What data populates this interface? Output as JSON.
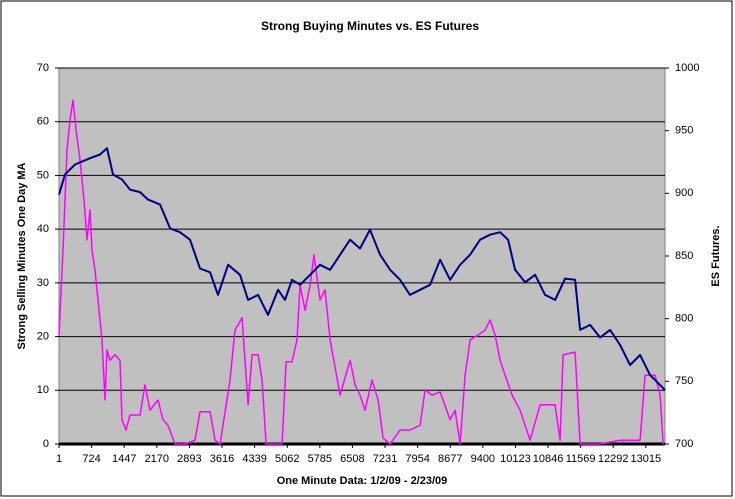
{
  "chart_data": {
    "type": "line",
    "title": "Strong Buying Minutes vs. ES Futures",
    "x_label": "One Minute Data:  1/2/09 - 2/23/09",
    "y_label": "Strong Selling Minutes  One Day MA",
    "y2_label": "ES Futures.",
    "xlim": [
      1,
      13440
    ],
    "xticks": [
      1,
      724,
      1447,
      2170,
      2893,
      3616,
      4339,
      5062,
      5785,
      6508,
      7231,
      7954,
      8677,
      9400,
      10123,
      10846,
      11569,
      12292,
      13015
    ],
    "ylim": [
      0,
      70
    ],
    "yticks": [
      0,
      10,
      20,
      30,
      40,
      50,
      60,
      70
    ],
    "y2lim": [
      700,
      1000
    ],
    "y2ticks": [
      700,
      750,
      800,
      850,
      900,
      950,
      1000
    ],
    "grid": true,
    "series": [
      {
        "color": "#ff00ff",
        "axis": "y",
        "x": [
          1,
          90,
          178,
          245,
          311,
          378,
          467,
          556,
          622,
          689,
          733,
          799,
          866,
          955,
          1021,
          1066,
          1132,
          1243,
          1354,
          1399,
          1487,
          1576,
          1798,
          1909,
          2020,
          2197,
          2308,
          2419,
          2574,
          2796,
          3018,
          3129,
          3351,
          3462,
          3573,
          3794,
          3905,
          4061,
          4194,
          4283,
          4416,
          4505,
          4593,
          4948,
          5037,
          5169,
          5280,
          5347,
          5458,
          5569,
          5657,
          5790,
          5901,
          6012,
          6234,
          6456,
          6567,
          6677,
          6788,
          6944,
          7077,
          7188,
          7343,
          7565,
          7786,
          8008,
          8119,
          8274,
          8452,
          8674,
          8785,
          8895,
          9006,
          9117,
          9295,
          9450,
          9561,
          9672,
          9783,
          9894,
          10049,
          10226,
          10448,
          10670,
          11002,
          11113,
          11180,
          11446,
          11557,
          11779,
          12001,
          12444,
          12888,
          12999,
          13221,
          13332,
          13399
        ],
        "values": [
          20.3,
          36.1,
          54.7,
          60.3,
          64,
          58.5,
          52.9,
          45.4,
          38,
          43.6,
          36.1,
          32.4,
          26.8,
          19.4,
          8.2,
          17.5,
          15.6,
          16.6,
          15.6,
          4.5,
          2.6,
          5.4,
          5.4,
          11,
          6.3,
          8.2,
          4.5,
          3.5,
          0,
          0,
          0.7,
          6,
          6,
          0.7,
          0,
          11.9,
          21.2,
          23.5,
          7.3,
          16.6,
          16.6,
          11.9,
          0,
          0,
          15.3,
          15.3,
          19.4,
          29.6,
          24.9,
          29.6,
          35.2,
          26.8,
          28.7,
          19.4,
          9.1,
          15.6,
          11,
          9.1,
          6.3,
          11.9,
          8.2,
          1.1,
          0,
          2.6,
          2.6,
          3.5,
          10.1,
          9.1,
          9.7,
          4.5,
          6.3,
          0,
          12.8,
          19.4,
          20.3,
          21.2,
          23.1,
          20.3,
          15.6,
          12.8,
          9.1,
          6.3,
          0.7,
          7.3,
          7.3,
          0.7,
          16.6,
          17.1,
          0,
          0,
          0,
          0.7,
          0.7,
          12.8,
          12.8,
          9.1,
          0
        ]
      },
      {
        "color": "#000080",
        "axis": "y2",
        "x": [
          1,
          134,
          356,
          689,
          910,
          1066,
          1199,
          1399,
          1576,
          1798,
          1976,
          2242,
          2464,
          2685,
          2907,
          3129,
          3351,
          3528,
          3750,
          4016,
          4194,
          4416,
          4637,
          4859,
          5014,
          5169,
          5347,
          5569,
          5790,
          6012,
          6234,
          6456,
          6677,
          6899,
          7121,
          7343,
          7565,
          7786,
          8008,
          8230,
          8452,
          8674,
          8895,
          9117,
          9339,
          9561,
          9783,
          9960,
          10115,
          10337,
          10559,
          10781,
          11002,
          11224,
          11446,
          11557,
          11779,
          12001,
          12223,
          12444,
          12666,
          12888,
          13110,
          13332,
          13440
        ],
        "values": [
          899,
          915,
          923,
          928,
          931,
          936,
          915,
          911,
          903,
          901,
          895,
          891,
          872,
          869,
          863,
          840,
          837,
          819,
          843,
          835,
          815,
          819,
          803,
          823,
          815,
          831,
          827,
          835,
          843,
          839,
          851,
          863,
          856,
          871,
          851,
          839,
          831,
          819,
          823,
          827,
          847,
          831,
          843,
          851,
          863,
          867,
          869,
          863,
          839,
          829,
          835,
          819,
          815,
          832,
          831,
          791,
          795,
          785,
          791,
          779,
          763,
          771,
          755,
          747,
          743
        ]
      }
    ]
  }
}
